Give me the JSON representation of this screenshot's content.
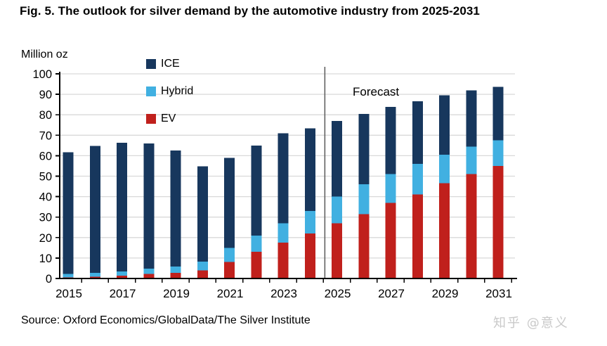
{
  "title": "Fig. 5. The outlook for silver demand by the automotive industry from 2025-2031",
  "source": "Source: Oxford Economics/GlobalData/The Silver Institute",
  "watermark": "知乎 @意义",
  "colors": {
    "ice": "#17375d",
    "hybrid": "#41b0e1",
    "ev": "#c0201c",
    "gridline": "#d9d9d9",
    "axis": "#000000",
    "divider": "#595959",
    "watermark": "#c9c9c9",
    "text": "#000000"
  },
  "chart_data": {
    "type": "bar",
    "stacked": true,
    "title": "Fig. 5. The outlook for silver demand by the automotive industry from 2025-2031",
    "ylabel": "Million oz",
    "xlabel": "",
    "ylim": [
      0,
      100
    ],
    "ytick_step": 10,
    "grid": true,
    "legend_position": "top-left-inside",
    "categories": [
      "2015",
      "2016",
      "2017",
      "2018",
      "2019",
      "2020",
      "2021",
      "2022",
      "2023",
      "2024",
      "2025",
      "2026",
      "2027",
      "2028",
      "2029",
      "2030",
      "2031"
    ],
    "xtick_labels": [
      "2015",
      "2017",
      "2019",
      "2021",
      "2023",
      "2025",
      "2027",
      "2029",
      "2031"
    ],
    "series": [
      {
        "name": "ICE",
        "color_key": "ice",
        "values": [
          59.4,
          62.0,
          63.0,
          61.2,
          56.6,
          46.6,
          44.0,
          44.0,
          44.0,
          40.3,
          37.0,
          34.4,
          32.8,
          30.6,
          29.0,
          27.4,
          26.2
        ]
      },
      {
        "name": "Hybrid",
        "color_key": "hybrid",
        "values": [
          1.7,
          1.9,
          2.0,
          2.6,
          3.1,
          4.2,
          7.0,
          8.0,
          9.5,
          11.0,
          13.0,
          14.5,
          14.0,
          15.0,
          14.0,
          13.5,
          12.5
        ]
      },
      {
        "name": "EV",
        "color_key": "ev",
        "values": [
          0.5,
          0.9,
          1.4,
          2.2,
          2.8,
          4.0,
          8.0,
          13.0,
          17.5,
          22.0,
          27.0,
          31.5,
          37.0,
          41.0,
          46.5,
          51.0,
          55.0
        ]
      }
    ],
    "stack_order": [
      "EV",
      "Hybrid",
      "ICE"
    ],
    "forecast_divider_after_category": "2024",
    "annotations": [
      {
        "text": "Forecast",
        "position": "top-of-forecast-region"
      }
    ]
  }
}
